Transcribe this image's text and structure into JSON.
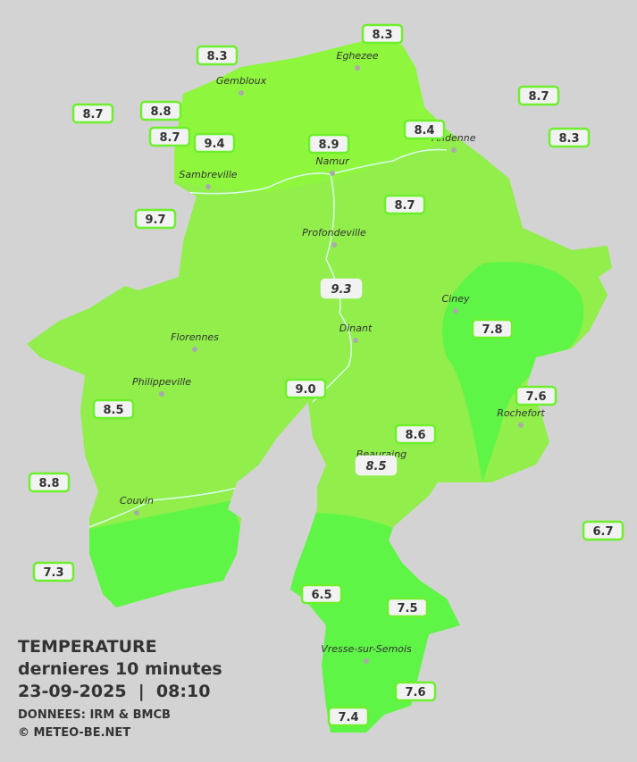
{
  "header": {
    "title": "TEMPERATURE",
    "subtitle": "dernieres 10 minutes",
    "datetime": "23-09-2025  |  08:10",
    "source": "DONNEES: IRM & BMCB",
    "credit": "© METEO-BE.NET"
  },
  "towns": [
    "Eghezee",
    "Gembloux",
    "Andenne",
    "Namur",
    "Sambreville",
    "Profondeville",
    "Ciney",
    "Dinant",
    "Florennes",
    "Philippeville",
    "Rochefort",
    "Beauraing",
    "Couvin",
    "Vresse-sur-Semois"
  ],
  "stations": [
    "8.3",
    "8.3",
    "8.7",
    "8.8",
    "8.7",
    "9.4",
    "8.9",
    "8.4",
    "8.7",
    "8.3",
    "9.7",
    "8.7",
    "9.3",
    "7.8",
    "9.0",
    "8.5",
    "7.6",
    "8.6",
    "8.5",
    "8.8",
    "6.7",
    "7.3",
    "6.5",
    "7.5",
    "7.6",
    "7.4"
  ]
}
